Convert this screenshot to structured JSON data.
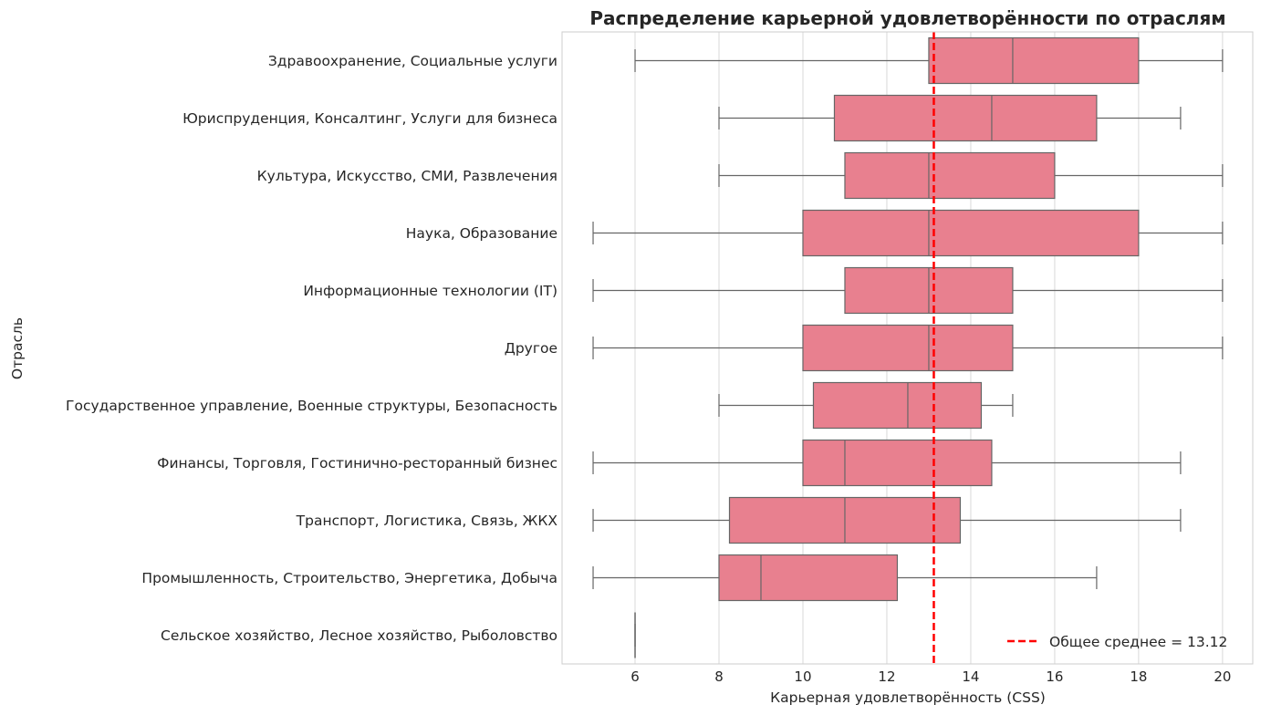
{
  "chart_data": {
    "type": "boxplot",
    "orientation": "horizontal",
    "title": "Распределение карьерной удовлетворённости по отраслям",
    "xlabel": "Карьерная удовлетворённость (CSS)",
    "ylabel": "Отрасль",
    "xlim": [
      4.26,
      20.72
    ],
    "xticks": [
      6,
      8,
      10,
      12,
      14,
      16,
      18,
      20
    ],
    "grid": "vertical",
    "box_color": "#e8808f",
    "line_color": "#666666",
    "categories": [
      {
        "label": "Здравоохранение, Социальные услуги",
        "min": 6,
        "q1": 13,
        "median": 15,
        "q3": 18,
        "max": 20
      },
      {
        "label": "Юриспруденция, Консалтинг, Услуги для бизнеса",
        "min": 8,
        "q1": 10.75,
        "median": 14.5,
        "q3": 17,
        "max": 19
      },
      {
        "label": "Культура, Искусство, СМИ, Развлечения",
        "min": 8,
        "q1": 11,
        "median": 13,
        "q3": 16,
        "max": 20
      },
      {
        "label": "Наука, Образование",
        "min": 5,
        "q1": 10,
        "median": 13,
        "q3": 18,
        "max": 20
      },
      {
        "label": "Информационные технологии (IT)",
        "min": 5,
        "q1": 11,
        "median": 13,
        "q3": 15,
        "max": 20
      },
      {
        "label": "Другое",
        "min": 5,
        "q1": 10,
        "median": 13,
        "q3": 15,
        "max": 20
      },
      {
        "label": "Государственное управление, Военные структуры, Безопасность",
        "min": 8,
        "q1": 10.25,
        "median": 12.5,
        "q3": 14.25,
        "max": 15
      },
      {
        "label": "Финансы, Торговля, Гостинично-ресторанный бизнес",
        "min": 5,
        "q1": 10,
        "median": 11,
        "q3": 14.5,
        "max": 19
      },
      {
        "label": "Транспорт, Логистика, Связь, ЖКХ",
        "min": 5,
        "q1": 8.25,
        "median": 11,
        "q3": 13.75,
        "max": 19
      },
      {
        "label": "Промышленность, Строительство, Энергетика, Добыча",
        "min": 5,
        "q1": 8,
        "median": 9,
        "q3": 12.25,
        "max": 17
      },
      {
        "label": "Сельское хозяйство, Лесное хозяйство, Рыболовство",
        "min": 6,
        "q1": 6,
        "median": 6,
        "q3": 6,
        "max": 6
      }
    ],
    "reference_line": {
      "value": 13.12,
      "color": "#ff0000",
      "style": "dashed",
      "label": "Общее среднее = 13.12"
    },
    "legend_placement": "bottom-right"
  }
}
